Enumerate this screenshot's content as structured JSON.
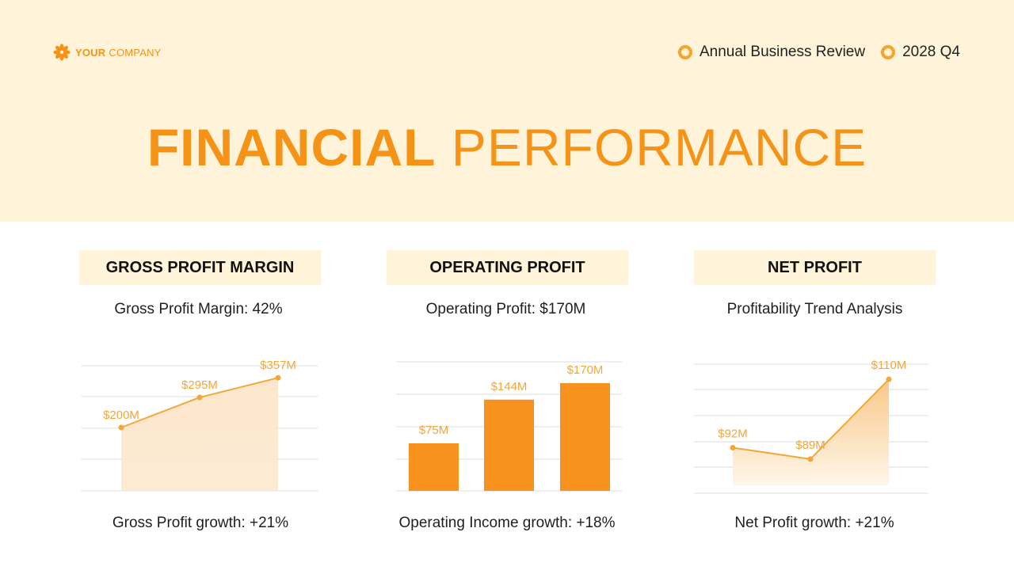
{
  "header": {
    "logo": {
      "bold": "YOUR",
      "rest": "COMPANY",
      "icon": "flower-icon"
    },
    "meta": [
      {
        "label": "Annual Business Review",
        "icon": "ring-bullet-icon"
      },
      {
        "label": "2028 Q4",
        "icon": "ring-bullet-icon"
      }
    ],
    "title_bold": "FINANCIAL",
    "title_light": "PERFORMANCE"
  },
  "colors": {
    "accent": "#f59317",
    "header_bg": "#fff3d9",
    "chart_fill": "#fde7cc",
    "bar": "#f7921e",
    "label": "#f3a63a"
  },
  "cards": [
    {
      "heading": "GROSS PROFIT MARGIN",
      "subtitle": "Gross Profit Margin: 42%",
      "footer": "Gross Profit growth: +21%"
    },
    {
      "heading": "OPERATING PROFIT",
      "subtitle": "Operating Profit: $170M",
      "footer": "Operating Income growth: +18%"
    },
    {
      "heading": "NET PROFIT",
      "subtitle": "Profitability Trend Analysis",
      "footer": "Net Profit growth: +21%"
    }
  ],
  "chart_data": [
    {
      "type": "area",
      "values": [
        200,
        295,
        357
      ],
      "data_labels": [
        "$200M",
        "$295M",
        "$357M"
      ],
      "ylim": [
        0,
        400
      ],
      "grid": true
    },
    {
      "type": "bar",
      "values": [
        75,
        144,
        170
      ],
      "data_labels": [
        "$75M",
        "$144M",
        "$170M"
      ],
      "ylim": [
        0,
        200
      ],
      "grid": true
    },
    {
      "type": "area",
      "values": [
        92,
        89,
        110
      ],
      "data_labels": [
        "$92M",
        "$89M",
        "$110M"
      ],
      "ylim": [
        80,
        114
      ],
      "grid": true
    }
  ]
}
